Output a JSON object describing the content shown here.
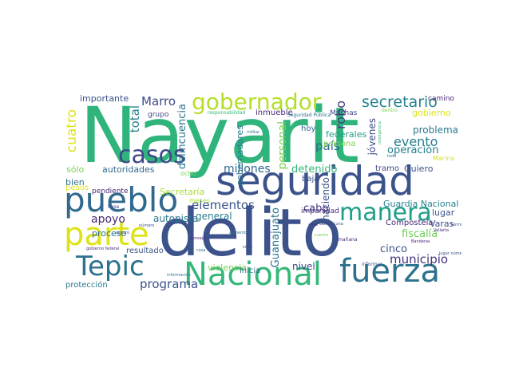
{
  "words": [
    {
      "text": "Nayarit",
      "color": "#2fb47c"
    },
    {
      "text": "delito",
      "color": "#3b528b"
    },
    {
      "text": "seguridad",
      "color": "#3b528b"
    },
    {
      "text": "Nacional",
      "color": "#35b779"
    },
    {
      "text": "fuerza",
      "color": "#2c728e"
    },
    {
      "text": "pueblo",
      "color": "#31688e"
    },
    {
      "text": "parte",
      "color": "#dde318"
    },
    {
      "text": "Tepic",
      "color": "#2c728e"
    },
    {
      "text": "manera",
      "color": "#1f9e89"
    },
    {
      "text": "gobernador",
      "color": "#b5de2b"
    },
    {
      "text": "casos",
      "color": "#3e4989"
    },
    {
      "text": "secretario",
      "color": "#26828e"
    },
    {
      "text": "elementos",
      "color": "#3b528b"
    },
    {
      "text": "millones",
      "color": "#31688e"
    },
    {
      "text": "detenido",
      "color": "#35b779"
    },
    {
      "text": "evento",
      "color": "#287d8e"
    },
    {
      "text": "país",
      "color": "#31688e"
    },
    {
      "text": "operación",
      "color": "#26828e"
    },
    {
      "text": "Marro",
      "color": "#3e4989"
    },
    {
      "text": "apoyo",
      "color": "#482878"
    },
    {
      "text": "autopista",
      "color": "#2a788e"
    },
    {
      "text": "general",
      "color": "#287d8e"
    },
    {
      "text": "cabo",
      "color": "#443983"
    },
    {
      "text": "municipio",
      "color": "#46337e"
    },
    {
      "text": "fiscalía",
      "color": "#6ece58"
    },
    {
      "text": "cinco",
      "color": "#3b528b"
    },
    {
      "text": "programa",
      "color": "#3b528b"
    },
    {
      "text": "nivel",
      "color": "#3e4989"
    },
    {
      "text": "Guardia Nacional",
      "color": "#26828e"
    },
    {
      "text": "Compostela",
      "color": "#482878"
    },
    {
      "text": "lugar",
      "color": "#3b528b"
    },
    {
      "text": "Varas",
      "color": "#3e4989"
    },
    {
      "text": "problema",
      "color": "#2a788e"
    },
    {
      "text": "gobierno",
      "color": "#dde318"
    },
    {
      "text": "importante",
      "color": "#3b528b"
    },
    {
      "text": "autoridades",
      "color": "#31688e"
    },
    {
      "text": "Quiero",
      "color": "#3b528b"
    },
    {
      "text": "tramo",
      "color": "#3e4989"
    },
    {
      "text": "proceso",
      "color": "#2c728e"
    },
    {
      "text": "resultado",
      "color": "#3b528b"
    },
    {
      "text": "protección",
      "color": "#2a788e"
    },
    {
      "text": "violencia",
      "color": "#7ad151"
    },
    {
      "text": "inicia",
      "color": "#2c728e"
    },
    {
      "text": "Secretaría",
      "color": "#a8db34"
    },
    {
      "text": "pendiente",
      "color": "#482878"
    },
    {
      "text": "sólo",
      "color": "#7ad151"
    },
    {
      "text": "bien",
      "color": "#2c728e"
    },
    {
      "text": "pesos",
      "color": "#dde318"
    },
    {
      "text": "federales",
      "color": "#1f9e89"
    },
    {
      "text": "persona",
      "color": "#7ad151"
    },
    {
      "text": "hoy",
      "color": "#31688e"
    },
    {
      "text": "inmueble",
      "color": "#482878"
    },
    {
      "text": "Muchas",
      "color": "#3e4989"
    },
    {
      "text": "camino",
      "color": "#482878"
    },
    {
      "text": "grupo",
      "color": "#3e4989"
    },
    {
      "text": "baja",
      "color": "#3b528b"
    },
    {
      "text": "impunidad",
      "color": "#482878"
    },
    {
      "text": "cuatro",
      "color": "#dde318"
    },
    {
      "text": "total",
      "color": "#26828e"
    },
    {
      "text": "delincuencia",
      "color": "#2a788e"
    },
    {
      "text": "robo",
      "color": "#443983"
    },
    {
      "text": "jóvenes",
      "color": "#3e4989"
    },
    {
      "text": "personal",
      "color": "#7ad151"
    },
    {
      "text": "haciendo",
      "color": "#3b528b"
    },
    {
      "text": "Guanajuato",
      "color": "#2c728e"
    },
    {
      "text": "gobernadores",
      "color": "#2a788e"
    },
    {
      "text": "ocho",
      "color": "#7ad151"
    },
    {
      "text": "meses",
      "color": "#a8db34"
    },
    {
      "text": "Marina",
      "color": "#dde318"
    },
    {
      "text": "responsabilidad",
      "color": "#35b779"
    },
    {
      "text": "Seguridad Pública",
      "color": "#2c728e"
    },
    {
      "text": "militar",
      "color": "#2c728e"
    },
    {
      "text": "inteligencia",
      "color": "#35b779"
    },
    {
      "text": "dentro",
      "color": "#7ad151"
    },
    {
      "text": "años",
      "color": "#46337e"
    },
    {
      "text": "García Luna",
      "color": "#3e4989"
    },
    {
      "text": "mañana",
      "color": "#482878"
    },
    {
      "text": "informar",
      "color": "#3b528b"
    },
    {
      "text": "lugar número",
      "color": "#3b528b"
    },
    {
      "text": "Banderas",
      "color": "#482878"
    },
    {
      "text": "Vallarta",
      "color": "#482878"
    },
    {
      "text": "terminar",
      "color": "#3b528b"
    },
    {
      "text": "todo",
      "color": "#2c728e"
    },
    {
      "text": "siete",
      "color": "#3e4989"
    },
    {
      "text": "consejo",
      "color": "#482878"
    },
    {
      "text": "información",
      "color": "#2a788e"
    },
    {
      "text": "número",
      "color": "#3b528b"
    },
    {
      "text": "seguro",
      "color": "#3b528b"
    },
    {
      "text": "gobierno federal",
      "color": "#482878"
    },
    {
      "text": "base",
      "color": "#3b528b"
    },
    {
      "text": "cuento",
      "color": "#7ad151"
    },
    {
      "text": "aumento",
      "color": "#2c728e"
    },
    {
      "text": "casa",
      "color": "#2c728e"
    }
  ]
}
